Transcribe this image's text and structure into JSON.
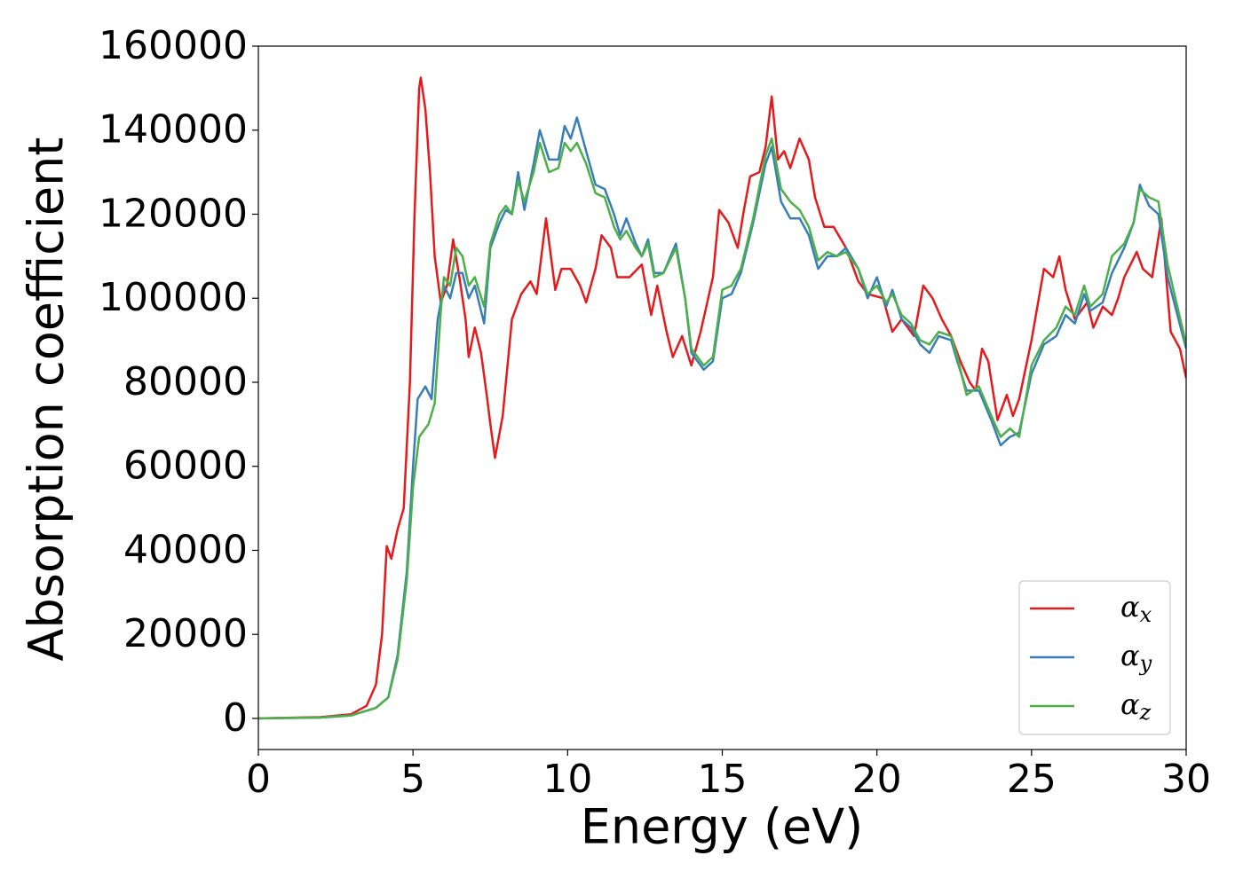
{
  "chart_data": {
    "type": "line",
    "xlabel": "Energy (eV)",
    "ylabel": "Absorption coefficient",
    "xlim": [
      0,
      30
    ],
    "xticks": [
      0,
      5,
      10,
      15,
      20,
      25,
      30
    ],
    "ylim": [
      -7400,
      160000
    ],
    "yticks": [
      0,
      20000,
      40000,
      60000,
      80000,
      100000,
      120000,
      140000,
      160000
    ],
    "legend": "lower right",
    "series": [
      {
        "name": "αx",
        "color": "#e41a1c",
        "x": [
          0,
          2,
          3,
          3.5,
          3.8,
          4.0,
          4.15,
          4.3,
          4.5,
          4.7,
          4.9,
          5.05,
          5.2,
          5.25,
          5.4,
          5.55,
          5.7,
          5.9,
          6.1,
          6.3,
          6.5,
          6.7,
          6.8,
          7.0,
          7.2,
          7.4,
          7.5,
          7.65,
          7.9,
          8.2,
          8.5,
          8.8,
          9.0,
          9.3,
          9.6,
          9.8,
          10.1,
          10.4,
          10.6,
          10.9,
          11.1,
          11.4,
          11.6,
          12.0,
          12.4,
          12.7,
          12.9,
          13.2,
          13.4,
          13.7,
          14.0,
          14.3,
          14.7,
          14.9,
          15.2,
          15.5,
          15.7,
          15.9,
          16.2,
          16.4,
          16.6,
          16.8,
          17.0,
          17.2,
          17.5,
          17.8,
          18.0,
          18.3,
          18.6,
          19.0,
          19.4,
          19.7,
          20.2,
          20.5,
          20.8,
          21.2,
          21.5,
          21.8,
          22.1,
          22.4,
          22.7,
          23.0,
          23.2,
          23.4,
          23.6,
          23.9,
          24.2,
          24.4,
          24.6,
          25.0,
          25.4,
          25.7,
          25.9,
          26.1,
          26.4,
          26.8,
          27.0,
          27.3,
          27.6,
          27.8,
          28.0,
          28.4,
          28.6,
          28.9,
          29.2,
          29.5,
          29.8,
          30
        ],
        "values": [
          0,
          300,
          1000,
          3000,
          8000,
          20000,
          41000,
          38000,
          45000,
          50000,
          80000,
          120000,
          150000,
          152500,
          145000,
          130000,
          110000,
          99000,
          103000,
          114000,
          105000,
          95000,
          86000,
          93000,
          87000,
          76000,
          70000,
          62000,
          72000,
          95000,
          101000,
          104000,
          101000,
          119000,
          102000,
          107000,
          107000,
          103000,
          99000,
          107000,
          115000,
          112000,
          105000,
          105000,
          108000,
          96000,
          103000,
          92000,
          86000,
          91000,
          84000,
          92000,
          105000,
          121000,
          118000,
          112000,
          121000,
          129000,
          130000,
          136000,
          148000,
          133000,
          135000,
          131000,
          138000,
          133000,
          124000,
          117000,
          117000,
          112000,
          104000,
          101000,
          100000,
          92000,
          95000,
          91000,
          103000,
          100000,
          95000,
          91000,
          85000,
          80000,
          78000,
          88000,
          85000,
          71000,
          77000,
          72000,
          76000,
          90000,
          107000,
          105000,
          110000,
          102000,
          95000,
          99000,
          93000,
          98000,
          96000,
          100000,
          105000,
          111000,
          107000,
          105000,
          119000,
          92000,
          88000,
          81000
        ]
      },
      {
        "name": "αy",
        "color": "#377eb8",
        "x": [
          0,
          2,
          3,
          3.8,
          4.2,
          4.5,
          4.8,
          5.0,
          5.15,
          5.4,
          5.6,
          5.8,
          6.0,
          6.2,
          6.4,
          6.6,
          6.8,
          7.0,
          7.3,
          7.5,
          7.8,
          8.0,
          8.2,
          8.4,
          8.6,
          8.9,
          9.1,
          9.4,
          9.7,
          9.9,
          10.1,
          10.3,
          10.6,
          10.9,
          11.2,
          11.5,
          11.7,
          11.9,
          12.2,
          12.4,
          12.6,
          12.8,
          13.1,
          13.5,
          13.8,
          14.0,
          14.4,
          14.7,
          15.0,
          15.3,
          15.6,
          16.0,
          16.4,
          16.6,
          16.9,
          17.2,
          17.5,
          17.8,
          18.1,
          18.4,
          18.7,
          19.0,
          19.4,
          19.7,
          20.0,
          20.3,
          20.5,
          20.8,
          21.1,
          21.4,
          21.7,
          22.0,
          22.4,
          22.6,
          22.9,
          23.3,
          23.7,
          24.0,
          24.3,
          24.6,
          25.0,
          25.4,
          25.8,
          26.1,
          26.4,
          26.7,
          26.9,
          27.3,
          27.6,
          28.0,
          28.3,
          28.5,
          28.8,
          29.1,
          29.4,
          30
        ],
        "values": [
          0,
          200,
          700,
          2500,
          5000,
          15000,
          35000,
          60000,
          76000,
          79000,
          76000,
          95000,
          103000,
          100000,
          106000,
          106000,
          100000,
          103000,
          94000,
          112000,
          118000,
          121000,
          120000,
          130000,
          121000,
          132000,
          140000,
          133000,
          133000,
          141000,
          138000,
          143000,
          135000,
          127000,
          126000,
          120000,
          115000,
          119000,
          113000,
          110000,
          114000,
          106000,
          106000,
          113000,
          100000,
          87000,
          83000,
          85000,
          100000,
          101000,
          106000,
          118000,
          132000,
          136000,
          123000,
          119000,
          119000,
          115000,
          107000,
          110000,
          110000,
          112000,
          107000,
          100000,
          105000,
          98000,
          102000,
          95000,
          93000,
          89000,
          87000,
          91000,
          90000,
          85000,
          78000,
          78000,
          71000,
          65000,
          67000,
          68000,
          82000,
          89000,
          91000,
          96000,
          94000,
          101000,
          97000,
          99000,
          106000,
          112000,
          118000,
          127000,
          122000,
          120000,
          105000,
          88000
        ]
      },
      {
        "name": "αz",
        "color": "#4daf4a",
        "x": [
          0,
          2,
          3,
          3.8,
          4.2,
          4.5,
          4.8,
          5.0,
          5.2,
          5.5,
          5.7,
          5.9,
          6.0,
          6.2,
          6.4,
          6.6,
          6.8,
          7.0,
          7.3,
          7.5,
          7.8,
          8.0,
          8.2,
          8.4,
          8.6,
          8.9,
          9.1,
          9.4,
          9.7,
          9.9,
          10.1,
          10.3,
          10.6,
          10.9,
          11.2,
          11.5,
          11.7,
          11.9,
          12.2,
          12.4,
          12.6,
          12.8,
          13.1,
          13.5,
          13.8,
          14.0,
          14.4,
          14.7,
          15.0,
          15.3,
          15.6,
          16.0,
          16.4,
          16.6,
          16.9,
          17.2,
          17.5,
          17.8,
          18.1,
          18.4,
          18.7,
          19.0,
          19.4,
          19.7,
          20.0,
          20.3,
          20.5,
          20.8,
          21.1,
          21.4,
          21.7,
          22.0,
          22.4,
          22.6,
          22.9,
          23.3,
          23.7,
          24.0,
          24.3,
          24.6,
          25.0,
          25.4,
          25.8,
          26.1,
          26.4,
          26.7,
          26.9,
          27.3,
          27.6,
          28.0,
          28.3,
          28.5,
          28.8,
          29.1,
          29.4,
          30
        ],
        "values": [
          0,
          200,
          700,
          2500,
          5000,
          14000,
          33000,
          55000,
          67000,
          70000,
          75000,
          97000,
          105000,
          103000,
          112000,
          110000,
          103000,
          105000,
          98000,
          113000,
          120000,
          122000,
          120000,
          128000,
          123000,
          130000,
          137000,
          130000,
          131000,
          137000,
          135000,
          137000,
          132000,
          125000,
          124000,
          117000,
          114000,
          116000,
          112000,
          110000,
          113000,
          105000,
          106000,
          112000,
          100000,
          88000,
          84000,
          86000,
          102000,
          103000,
          107000,
          119000,
          134000,
          138000,
          126000,
          123000,
          121000,
          117000,
          109000,
          111000,
          110000,
          111000,
          107000,
          101000,
          103000,
          99000,
          101000,
          96000,
          94000,
          90000,
          89000,
          92000,
          91000,
          86000,
          77000,
          79000,
          72000,
          67000,
          69000,
          67000,
          84000,
          90000,
          93000,
          98000,
          96000,
          103000,
          98000,
          101000,
          110000,
          113000,
          118000,
          126000,
          124000,
          123000,
          108000,
          89000
        ]
      }
    ]
  }
}
